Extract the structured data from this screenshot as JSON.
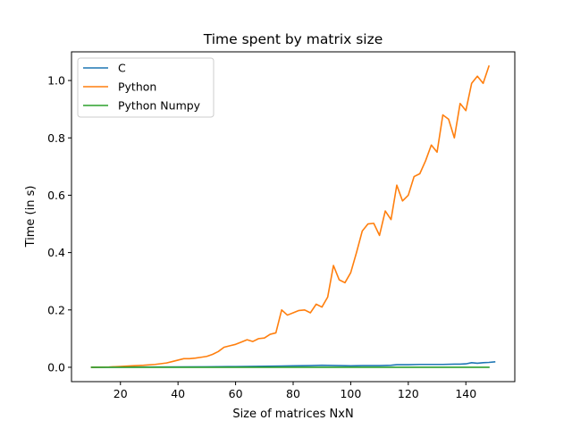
{
  "chart_data": {
    "type": "line",
    "title": "Time spent by matrix size",
    "xlabel": "Size of matrices NxN",
    "ylabel": "Time (in s)",
    "xlim": [
      3,
      157
    ],
    "ylim": [
      -0.05,
      1.1
    ],
    "xticks": [
      20,
      40,
      60,
      80,
      100,
      120,
      140
    ],
    "yticks": [
      0.0,
      0.2,
      0.4,
      0.6,
      0.8,
      1.0
    ],
    "xtick_labels": [
      "20",
      "40",
      "60",
      "80",
      "100",
      "120",
      "140"
    ],
    "ytick_labels": [
      "0.0",
      "0.2",
      "0.4",
      "0.6",
      "0.8",
      "1.0"
    ],
    "grid": false,
    "legend": "top-left",
    "series": [
      {
        "name": "C",
        "color": "#1f77b4",
        "x": [
          10,
          20,
          30,
          40,
          50,
          60,
          70,
          76,
          80,
          86,
          90,
          96,
          100,
          104,
          110,
          114,
          116,
          120,
          124,
          128,
          132,
          136,
          138,
          140,
          142,
          144,
          146,
          148,
          150
        ],
        "y": [
          0.0,
          0.0005,
          0.0008,
          0.0012,
          0.0018,
          0.0025,
          0.0035,
          0.0045,
          0.005,
          0.006,
          0.007,
          0.006,
          0.005,
          0.006,
          0.006,
          0.007,
          0.009,
          0.009,
          0.01,
          0.01,
          0.01,
          0.011,
          0.011,
          0.012,
          0.016,
          0.014,
          0.016,
          0.017,
          0.019
        ]
      },
      {
        "name": "Python",
        "color": "#ff7f0e",
        "x": [
          10,
          16,
          20,
          24,
          28,
          32,
          36,
          38,
          40,
          42,
          44,
          46,
          48,
          50,
          52,
          54,
          56,
          58,
          60,
          62,
          64,
          66,
          68,
          70,
          72,
          74,
          76,
          78,
          80,
          82,
          84,
          86,
          88,
          90,
          92,
          94,
          96,
          98,
          100,
          102,
          104,
          106,
          108,
          110,
          112,
          114,
          116,
          118,
          120,
          122,
          124,
          126,
          128,
          130,
          132,
          134,
          136,
          138,
          140,
          142,
          144,
          146,
          148
        ],
        "y": [
          0.0,
          0.001,
          0.003,
          0.005,
          0.007,
          0.01,
          0.015,
          0.02,
          0.025,
          0.03,
          0.03,
          0.032,
          0.035,
          0.038,
          0.045,
          0.055,
          0.07,
          0.075,
          0.08,
          0.088,
          0.096,
          0.09,
          0.1,
          0.102,
          0.115,
          0.12,
          0.2,
          0.182,
          0.19,
          0.198,
          0.2,
          0.19,
          0.22,
          0.21,
          0.245,
          0.355,
          0.305,
          0.295,
          0.33,
          0.4,
          0.475,
          0.5,
          0.502,
          0.46,
          0.545,
          0.515,
          0.635,
          0.58,
          0.6,
          0.665,
          0.675,
          0.72,
          0.775,
          0.75,
          0.88,
          0.865,
          0.8,
          0.92,
          0.895,
          0.99,
          1.015,
          0.99,
          1.05
        ]
      },
      {
        "name": "Python Numpy",
        "color": "#2ca02c",
        "x": [
          10,
          30,
          50,
          70,
          90,
          110,
          130,
          148
        ],
        "y": [
          0.0,
          0.0,
          0.0,
          0.0,
          0.0,
          0.0,
          0.0,
          0.0
        ]
      }
    ]
  }
}
